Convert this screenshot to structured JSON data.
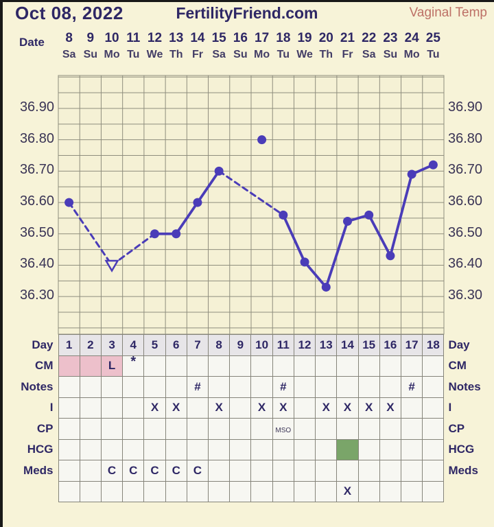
{
  "header": {
    "date": "Oct 08, 2022",
    "site": "FertilityFriend.com",
    "chart_type": "Vaginal Temp"
  },
  "date_header": {
    "label": "Date",
    "days_of_month": [
      "8",
      "9",
      "10",
      "11",
      "12",
      "13",
      "14",
      "15",
      "16",
      "17",
      "18",
      "19",
      "20",
      "21",
      "22",
      "23",
      "24",
      "25"
    ],
    "weekdays": [
      "Sa",
      "Su",
      "Mo",
      "Tu",
      "We",
      "Th",
      "Fr",
      "Sa",
      "Su",
      "Mo",
      "Tu",
      "We",
      "Th",
      "Fr",
      "Sa",
      "Su",
      "Mo",
      "Tu"
    ]
  },
  "chart_data": {
    "type": "line",
    "title": "Basal body temperature curve (Vaginal Temp)",
    "x_unit": "cycle day",
    "x_columns": 18,
    "ylim": [
      36.18,
      37.005
    ],
    "grid_step": 0.05,
    "y_ticks": [
      "36.90",
      "36.80",
      "36.70",
      "36.60",
      "36.50",
      "36.40",
      "36.30"
    ],
    "points": [
      {
        "day": 1,
        "temp": 36.6,
        "marker": "dot"
      },
      {
        "day": 3,
        "temp": 36.4,
        "marker": "open-triangle"
      },
      {
        "day": 5,
        "temp": 36.5,
        "marker": "dot"
      },
      {
        "day": 6,
        "temp": 36.5,
        "marker": "dot"
      },
      {
        "day": 7,
        "temp": 36.6,
        "marker": "dot"
      },
      {
        "day": 8,
        "temp": 36.7,
        "marker": "dot"
      },
      {
        "day": 10,
        "temp": 36.8,
        "marker": "dot",
        "discarded": true
      },
      {
        "day": 11,
        "temp": 36.56,
        "marker": "dot"
      },
      {
        "day": 12,
        "temp": 36.41,
        "marker": "dot"
      },
      {
        "day": 13,
        "temp": 36.33,
        "marker": "dot"
      },
      {
        "day": 14,
        "temp": 36.54,
        "marker": "dot"
      },
      {
        "day": 15,
        "temp": 36.56,
        "marker": "dot"
      },
      {
        "day": 16,
        "temp": 36.43,
        "marker": "dot"
      },
      {
        "day": 17,
        "temp": 36.69,
        "marker": "dot"
      },
      {
        "day": 18,
        "temp": 36.72,
        "marker": "dot"
      }
    ],
    "segments": [
      {
        "from": 1,
        "to": 3,
        "style": "dashed"
      },
      {
        "from": 3,
        "to": 5,
        "style": "dashed"
      },
      {
        "from": 5,
        "to": 6,
        "style": "solid"
      },
      {
        "from": 6,
        "to": 7,
        "style": "solid"
      },
      {
        "from": 7,
        "to": 8,
        "style": "solid"
      },
      {
        "from": 8,
        "to": 11,
        "style": "dashed"
      },
      {
        "from": 11,
        "to": 12,
        "style": "solid"
      },
      {
        "from": 12,
        "to": 13,
        "style": "solid"
      },
      {
        "from": 13,
        "to": 14,
        "style": "solid"
      },
      {
        "from": 14,
        "to": 15,
        "style": "solid"
      },
      {
        "from": 15,
        "to": 16,
        "style": "solid"
      },
      {
        "from": 16,
        "to": 17,
        "style": "solid"
      },
      {
        "from": 17,
        "to": 18,
        "style": "solid"
      }
    ]
  },
  "table": {
    "rows": [
      {
        "label": "Day",
        "header": true,
        "cells": [
          {
            "t": "1"
          },
          {
            "t": "2"
          },
          {
            "t": "3"
          },
          {
            "t": "4"
          },
          {
            "t": "5"
          },
          {
            "t": "6"
          },
          {
            "t": "7"
          },
          {
            "t": "8"
          },
          {
            "t": "9"
          },
          {
            "t": "10"
          },
          {
            "t": "11"
          },
          {
            "t": "12"
          },
          {
            "t": "13"
          },
          {
            "t": "14"
          },
          {
            "t": "15"
          },
          {
            "t": "16"
          },
          {
            "t": "17"
          },
          {
            "t": "18"
          }
        ]
      },
      {
        "label": "CM",
        "cells": [
          {
            "bg": "pink"
          },
          {
            "bg": "pink"
          },
          {
            "t": "L",
            "bg": "pink"
          },
          {
            "t": "*",
            "cls": "star"
          },
          {},
          {},
          {},
          {},
          {},
          {},
          {},
          {},
          {},
          {},
          {},
          {},
          {},
          {}
        ]
      },
      {
        "label": "Notes",
        "cells": [
          {},
          {},
          {},
          {},
          {},
          {},
          {
            "t": "#"
          },
          {},
          {},
          {},
          {
            "t": "#"
          },
          {},
          {},
          {},
          {},
          {},
          {
            "t": "#"
          },
          {}
        ]
      },
      {
        "label": "I",
        "cells": [
          {},
          {},
          {},
          {},
          {
            "t": "X"
          },
          {
            "t": "X"
          },
          {},
          {
            "t": "X"
          },
          {},
          {
            "t": "X"
          },
          {
            "t": "X"
          },
          {},
          {
            "t": "X"
          },
          {
            "t": "X"
          },
          {
            "t": "X"
          },
          {
            "t": "X"
          },
          {},
          {}
        ]
      },
      {
        "label": "CP",
        "cells": [
          {},
          {},
          {},
          {},
          {},
          {},
          {},
          {},
          {},
          {},
          {
            "t": "MSO",
            "cls": "small"
          },
          {},
          {},
          {},
          {},
          {},
          {},
          {}
        ]
      },
      {
        "label": "HCG",
        "cells": [
          {},
          {},
          {},
          {},
          {},
          {},
          {},
          {},
          {},
          {},
          {},
          {},
          {},
          {
            "bg": "green"
          },
          {},
          {},
          {},
          {}
        ]
      },
      {
        "label": "Meds",
        "cells": [
          {},
          {},
          {
            "t": "C"
          },
          {
            "t": "C"
          },
          {
            "t": "C"
          },
          {
            "t": "C"
          },
          {
            "t": "C"
          },
          {},
          {},
          {},
          {},
          {},
          {},
          {},
          {},
          {},
          {},
          {}
        ]
      },
      {
        "label": "",
        "cells": [
          {},
          {},
          {},
          {},
          {},
          {},
          {},
          {},
          {},
          {},
          {},
          {},
          {},
          {
            "t": "X"
          },
          {},
          {},
          {},
          {}
        ]
      }
    ]
  },
  "colors": {
    "background": "#f7f3d8",
    "chart_bg": "#f5f1d5",
    "grid_line": "#8e8d7d",
    "line": "#4a3cb8",
    "navy": "#2e2765",
    "pink": "#edc0cb",
    "green": "#7aa569",
    "temp_type_label": "#bd7066",
    "day_header_bg": "#e7e5e8",
    "cell_bg": "#f7f7f2",
    "cell_border": "#85847a"
  }
}
